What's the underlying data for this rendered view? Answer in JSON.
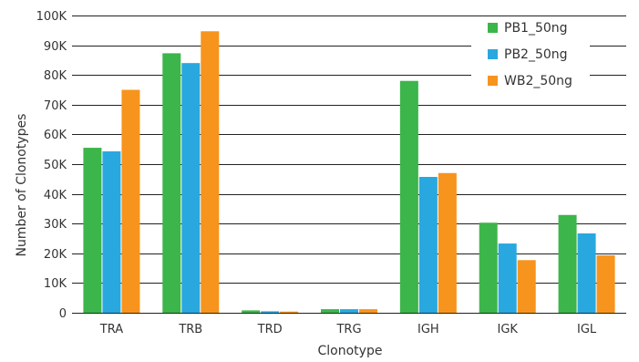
{
  "chart_data": {
    "type": "bar",
    "title": "",
    "xlabel": "Clonotype",
    "ylabel": "Number of Clonotypes",
    "ylim": [
      0,
      100000
    ],
    "yticks": [
      0,
      10000,
      20000,
      30000,
      40000,
      50000,
      60000,
      70000,
      80000,
      90000,
      100000
    ],
    "ytick_labels": [
      "0",
      "10K",
      "20K",
      "30K",
      "40K",
      "50K",
      "60K",
      "70K",
      "80K",
      "90K",
      "100K"
    ],
    "grid": true,
    "legend_position": "top-right",
    "categories": [
      "TRA",
      "TRB",
      "TRD",
      "TRG",
      "IGH",
      "IGK",
      "IGL"
    ],
    "series": [
      {
        "name": "PB1_50ng",
        "color": "#3cb54a",
        "values": [
          55500,
          87300,
          800,
          1200,
          78000,
          30300,
          32900
        ]
      },
      {
        "name": "PB2_50ng",
        "color": "#29a8e0",
        "values": [
          54300,
          84000,
          500,
          1200,
          45700,
          23300,
          26700
        ]
      },
      {
        "name": "WB2_50ng",
        "color": "#f7941d",
        "values": [
          75000,
          94700,
          400,
          1200,
          47000,
          17700,
          19300
        ]
      }
    ]
  }
}
